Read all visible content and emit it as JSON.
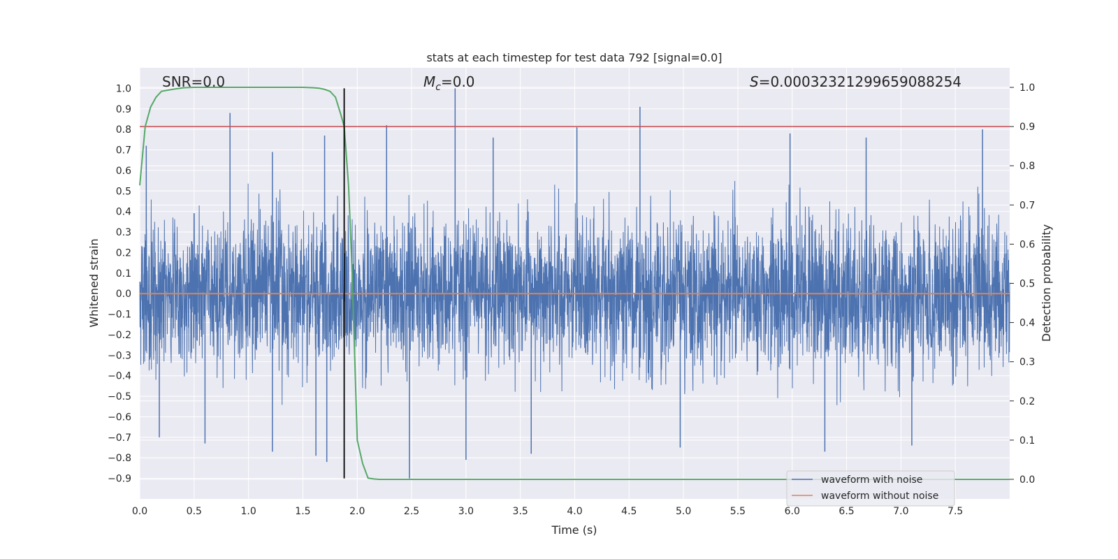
{
  "chart_data": {
    "type": "line",
    "title": "stats at each timestep for test data 792 [signal=0.0]",
    "xlabel": "Time (s)",
    "ylabel": "Whitened strain",
    "ylabel_right": "Detection probability",
    "xlim": [
      0.0,
      8.0
    ],
    "ylim": [
      -1.0,
      1.1
    ],
    "ylim_right": [
      -0.05,
      1.05
    ],
    "xticks": [
      0.0,
      0.5,
      1.0,
      1.5,
      2.0,
      2.5,
      3.0,
      3.5,
      4.0,
      4.5,
      5.0,
      5.5,
      6.0,
      6.5,
      7.0,
      7.5
    ],
    "xtick_labels": [
      "0.0",
      "0.5",
      "1.0",
      "1.5",
      "2.0",
      "2.5",
      "3.0",
      "3.5",
      "4.0",
      "4.5",
      "5.0",
      "5.5",
      "6.0",
      "6.5",
      "7.0",
      "7.5"
    ],
    "yticks": [
      -0.9,
      -0.8,
      -0.7,
      -0.6,
      -0.5,
      -0.4,
      -0.3,
      -0.2,
      -0.1,
      0.0,
      0.1,
      0.2,
      0.3,
      0.4,
      0.5,
      0.6,
      0.7,
      0.8,
      0.9,
      1.0
    ],
    "ytick_labels": [
      "−0.9",
      "−0.8",
      "−0.7",
      "−0.6",
      "−0.5",
      "−0.4",
      "−0.3",
      "−0.2",
      "−0.1",
      "0.0",
      "0.1",
      "0.2",
      "0.3",
      "0.4",
      "0.5",
      "0.6",
      "0.7",
      "0.8",
      "0.9",
      "1.0"
    ],
    "yticks_right": [
      0.0,
      0.1,
      0.2,
      0.3,
      0.4,
      0.5,
      0.6,
      0.7,
      0.8,
      0.9,
      1.0
    ],
    "ytick_labels_right": [
      "0.0",
      "0.1",
      "0.2",
      "0.3",
      "0.4",
      "0.5",
      "0.6",
      "0.7",
      "0.8",
      "0.9",
      "1.0"
    ],
    "grid": true,
    "legend_position": "bottom-right",
    "annotations": {
      "snr": "SNR=0.0",
      "mc_symbol": "M",
      "mc_subscript": "c",
      "mc_value": "=0.0",
      "s_symbol": "S",
      "s_value": "=0.0003232129965908825​4"
    },
    "vline_x": 1.88,
    "threshold_right": 0.9,
    "series": [
      {
        "name": "waveform with noise",
        "color": "#4c72b0",
        "axis": "left",
        "note_values": "noise envelope, typical range approximately -0.35 to 0.40 with sparse spikes",
        "spikes": [
          {
            "x": 0.06,
            "y": 0.72
          },
          {
            "x": 0.83,
            "y": 0.88
          },
          {
            "x": 1.22,
            "y": 0.69
          },
          {
            "x": 1.7,
            "y": 0.77
          },
          {
            "x": 2.27,
            "y": 0.82
          },
          {
            "x": 2.9,
            "y": 1.0
          },
          {
            "x": 3.25,
            "y": 0.76
          },
          {
            "x": 4.02,
            "y": 0.81
          },
          {
            "x": 4.6,
            "y": 0.91
          },
          {
            "x": 5.98,
            "y": 0.78
          },
          {
            "x": 6.68,
            "y": 0.76
          },
          {
            "x": 7.75,
            "y": 0.8
          },
          {
            "x": 1.62,
            "y": -0.79
          },
          {
            "x": 1.72,
            "y": -0.82
          },
          {
            "x": 1.22,
            "y": -0.77
          },
          {
            "x": 2.48,
            "y": -0.9
          },
          {
            "x": 3.0,
            "y": -0.81
          },
          {
            "x": 3.6,
            "y": -0.78
          },
          {
            "x": 4.97,
            "y": -0.75
          },
          {
            "x": 6.3,
            "y": -0.77
          },
          {
            "x": 7.1,
            "y": -0.74
          },
          {
            "x": 0.18,
            "y": -0.7
          },
          {
            "x": 0.6,
            "y": -0.73
          }
        ]
      },
      {
        "name": "waveform without noise",
        "color": "#dd8452",
        "axis": "left",
        "x": [
          0.0,
          8.0
        ],
        "y": [
          0.0,
          0.0
        ]
      },
      {
        "name": "",
        "color": "#55a868",
        "axis": "right",
        "x": [
          0.0,
          0.05,
          0.1,
          0.15,
          0.2,
          0.3,
          0.4,
          0.5,
          0.7,
          1.0,
          1.3,
          1.5,
          1.6,
          1.65,
          1.7,
          1.75,
          1.8,
          1.85,
          1.88,
          1.92,
          1.95,
          2.0,
          2.05,
          2.1,
          2.15,
          2.2,
          2.5,
          3.0,
          4.0,
          5.0,
          6.0,
          7.0,
          8.0
        ],
        "y": [
          0.75,
          0.9,
          0.95,
          0.975,
          0.99,
          0.995,
          0.999,
          1.0,
          1.0,
          1.0,
          1.0,
          1.0,
          0.999,
          0.998,
          0.995,
          0.99,
          0.975,
          0.93,
          0.9,
          0.75,
          0.55,
          0.1,
          0.04,
          0.003,
          0.001,
          0.0,
          0.0,
          0.0,
          0.0,
          0.0,
          0.0,
          0.0,
          0.0
        ]
      }
    ]
  }
}
